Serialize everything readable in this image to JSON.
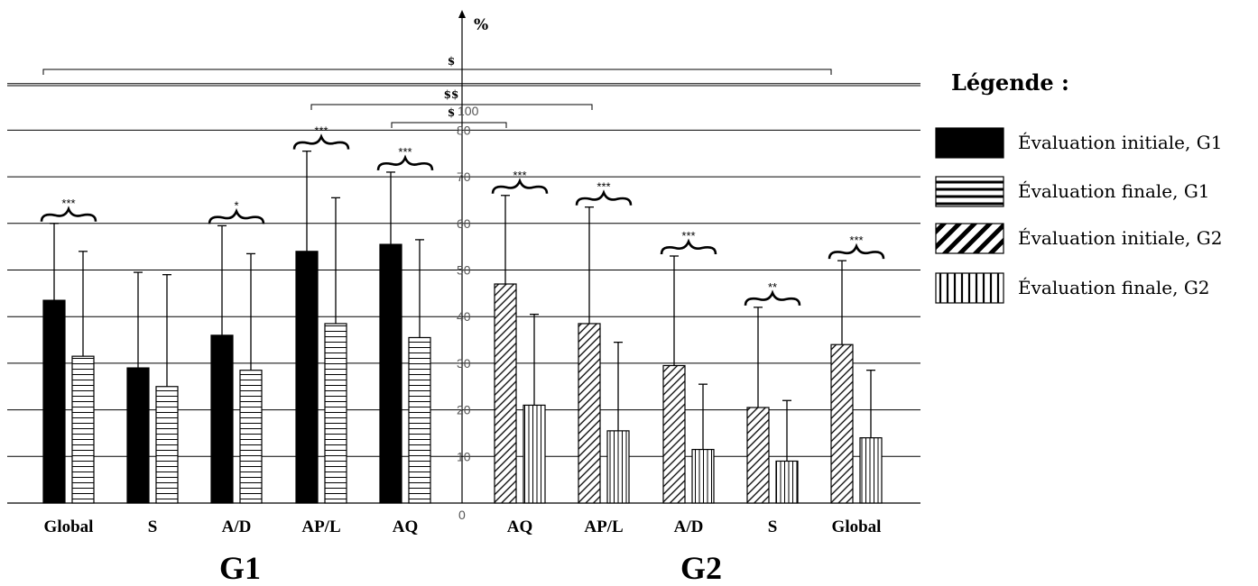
{
  "chart_data": {
    "type": "bar",
    "title": "",
    "y_unit": "%",
    "ylim": [
      0,
      100
    ],
    "y_ticks": [
      "0",
      "10",
      "20",
      "30",
      "40",
      "50",
      "60",
      "70",
      "80",
      "100"
    ],
    "grid": true,
    "legend_placement": "right",
    "legend_title": "Légende :",
    "series": [
      {
        "name": "Évaluation initiale, G1",
        "pattern": "solid-black"
      },
      {
        "name": "Évaluation finale, G1",
        "pattern": "horizontal-stripes"
      },
      {
        "name": "Évaluation initiale, G2",
        "pattern": "diagonal-stripes"
      },
      {
        "name": "Évaluation finale, G2",
        "pattern": "vertical-stripes"
      }
    ],
    "groups": [
      {
        "label": "G1",
        "categories": [
          {
            "label": "Global",
            "initial": 43.5,
            "final": 31.5,
            "err_initial": 16.5,
            "err_final": 22.5,
            "sig": "***"
          },
          {
            "label": "S",
            "initial": 29.0,
            "final": 25.0,
            "err_initial": 20.5,
            "err_final": 24.0,
            "sig": ""
          },
          {
            "label": "A/D",
            "initial": 36.0,
            "final": 28.5,
            "err_initial": 23.5,
            "err_final": 25.0,
            "sig": "*"
          },
          {
            "label": "AP/L",
            "initial": 54.0,
            "final": 38.5,
            "err_initial": 21.5,
            "err_final": 27.0,
            "sig": "***"
          },
          {
            "label": "AQ",
            "initial": 55.5,
            "final": 35.5,
            "err_initial": 15.5,
            "err_final": 21.0,
            "sig": "***"
          }
        ]
      },
      {
        "label": "G2",
        "categories": [
          {
            "label": "AQ",
            "initial": 47.0,
            "final": 21.0,
            "err_initial": 19.0,
            "err_final": 19.5,
            "sig": "***"
          },
          {
            "label": "AP/L",
            "initial": 38.5,
            "final": 15.5,
            "err_initial": 25.0,
            "err_final": 19.0,
            "sig": "***"
          },
          {
            "label": "A/D",
            "initial": 29.5,
            "final": 11.5,
            "err_initial": 23.5,
            "err_final": 14.0,
            "sig": "***"
          },
          {
            "label": "S",
            "initial": 20.5,
            "final": 9.0,
            "err_initial": 21.5,
            "err_final": 13.0,
            "sig": "**"
          },
          {
            "label": "Global",
            "initial": 34.0,
            "final": 14.0,
            "err_initial": 18.0,
            "err_final": 14.5,
            "sig": "***"
          }
        ]
      }
    ],
    "comparison_brackets": [
      {
        "label": "$",
        "from": "G1 Global",
        "to": "G2 Global"
      },
      {
        "label": "$$",
        "from": "G1 AP/L",
        "to": "G2 AP/L"
      },
      {
        "label": "$",
        "from": "G1 AQ",
        "to": "G2 AQ"
      }
    ]
  }
}
